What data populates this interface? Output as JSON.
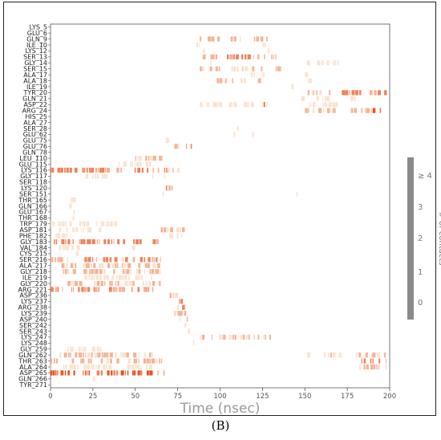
{
  "panel_label": "(B)",
  "chart_data": {
    "type": "heatmap",
    "xlabel": "Time (nsec)",
    "xlim": [
      0,
      200
    ],
    "xticks": [
      0,
      25,
      50,
      75,
      100,
      125,
      150,
      175,
      200
    ],
    "residues": [
      "LYS_5",
      "GLU_6",
      "GLN_9",
      "ILE_10",
      "LYS_12",
      "SER_13",
      "GLY_14",
      "SER_15",
      "ALA_17",
      "ALA_18",
      "ILE_19",
      "TYR_20",
      "GLN_21",
      "ASP_22",
      "ARG_24",
      "HIS_25",
      "ALA_27",
      "SER_28",
      "GLU_62",
      "GLU_75",
      "GLU_76",
      "GLN_78",
      "LEU_110",
      "GLU_115",
      "LYS_116",
      "GLY_117",
      "SER_118",
      "LYS_120",
      "SER_151",
      "THR_165",
      "GLN_166",
      "GLU_167",
      "THR_168",
      "TRP_179",
      "ASP_181",
      "PHE_182",
      "GLY_183",
      "VAL_184",
      "CYS_215",
      "SER_216",
      "ALA_217",
      "GLY_218",
      "ILE_219",
      "GLY_220",
      "ARG_221",
      "ASP_236",
      "LYS_237",
      "ARG_238",
      "LYS_239",
      "ASP_240",
      "SER_242",
      "SER_243",
      "LYS_247",
      "LYS_248",
      "GLY_259",
      "GLN_262",
      "THR_263",
      "ALA_264",
      "ASP_265",
      "GLN_266",
      "TYR_271"
    ],
    "colorbar": {
      "label": "# of contacts",
      "ticks": [
        "0",
        "1",
        "2",
        "3",
        "≥ 4"
      ],
      "color_low": "#fbe3cf",
      "color_high": "#e8531f"
    },
    "contacts": [
      {
        "residue": "LYS_5",
        "segments": [
          [
            130,
            131,
            1
          ]
        ]
      },
      {
        "residue": "GLU_6",
        "segments": [
          [
            89,
            90,
            1
          ],
          [
            131,
            132,
            1
          ]
        ]
      },
      {
        "residue": "GLN_9",
        "segments": [
          [
            88,
            100,
            2
          ],
          [
            105,
            112,
            2
          ],
          [
            118,
            128,
            2
          ]
        ]
      },
      {
        "residue": "ILE_10",
        "segments": [
          [
            86,
            88,
            1
          ],
          [
            125,
            127,
            1
          ]
        ]
      },
      {
        "residue": "LYS_12",
        "segments": [
          [
            90,
            92,
            1
          ],
          [
            128,
            130,
            1
          ]
        ]
      },
      {
        "residue": "SER_13",
        "segments": [
          [
            88,
            102,
            2
          ],
          [
            104,
            120,
            3
          ],
          [
            122,
            135,
            2
          ]
        ]
      },
      {
        "residue": "GLY_14",
        "segments": [
          [
            92,
            95,
            1
          ],
          [
            150,
            170,
            1
          ]
        ]
      },
      {
        "residue": "SER_15",
        "segments": [
          [
            88,
            100,
            2
          ],
          [
            105,
            125,
            2
          ],
          [
            127,
            136,
            2
          ]
        ]
      },
      {
        "residue": "ALA_17",
        "segments": [
          [
            118,
            122,
            1
          ],
          [
            125,
            128,
            1
          ],
          [
            148,
            152,
            1
          ]
        ]
      },
      {
        "residue": "ALA_18",
        "segments": [
          [
            98,
            108,
            2
          ],
          [
            112,
            128,
            2
          ],
          [
            152,
            156,
            1
          ]
        ]
      },
      {
        "residue": "ILE_19",
        "segments": [
          [
            95,
            97,
            1
          ],
          [
            142,
            144,
            1
          ]
        ]
      },
      {
        "residue": "TYR_20",
        "segments": [
          [
            150,
            165,
            2
          ],
          [
            168,
            200,
            3
          ]
        ]
      },
      {
        "residue": "GLN_21",
        "segments": [
          [
            148,
            150,
            1
          ],
          [
            155,
            165,
            1
          ],
          [
            175,
            180,
            1
          ]
        ]
      },
      {
        "residue": "ASP_22",
        "segments": [
          [
            88,
            110,
            1
          ],
          [
            114,
            128,
            1
          ],
          [
            122,
            127,
            4
          ],
          [
            150,
            170,
            1
          ]
        ]
      },
      {
        "residue": "ARG_24",
        "segments": [
          [
            150,
            190,
            2
          ],
          [
            190,
            196,
            4
          ]
        ]
      },
      {
        "residue": "HIS_25",
        "segments": [
          [
            105,
            106,
            1
          ]
        ]
      },
      {
        "residue": "ALA_27",
        "segments": [
          [
            102,
            103,
            1
          ]
        ]
      },
      {
        "residue": "SER_28",
        "segments": [
          [
            110,
            111,
            1
          ]
        ]
      },
      {
        "residue": "GLU_62",
        "segments": [
          [
            108,
            109,
            1
          ],
          [
            119,
            120,
            1
          ]
        ]
      },
      {
        "residue": "GLU_75",
        "segments": [
          [
            68,
            70,
            1
          ]
        ]
      },
      {
        "residue": "GLU_76",
        "segments": [
          [
            67,
            69,
            2
          ],
          [
            73,
            76,
            2
          ],
          [
            80,
            84,
            3
          ]
        ]
      },
      {
        "residue": "GLN_78",
        "segments": [
          [
            70,
            71,
            1
          ]
        ]
      },
      {
        "residue": "LEU_110",
        "segments": [
          [
            50,
            66,
            2
          ]
        ]
      },
      {
        "residue": "GLU_115",
        "segments": [
          [
            40,
            60,
            1
          ]
        ]
      },
      {
        "residue": "LYS_116",
        "segments": [
          [
            0,
            65,
            3
          ],
          [
            67,
            70,
            3
          ],
          [
            72,
            77,
            2
          ]
        ]
      },
      {
        "residue": "GLY_117",
        "segments": [
          [
            20,
            40,
            1
          ],
          [
            60,
            62,
            1
          ],
          [
            67,
            68,
            1
          ]
        ]
      },
      {
        "residue": "SER_118",
        "segments": [
          [
            66,
            68,
            1
          ]
        ]
      },
      {
        "residue": "LYS_120",
        "segments": [
          [
            68,
            72,
            3
          ]
        ]
      },
      {
        "residue": "SER_151",
        "segments": [
          [
            66,
            68,
            1
          ],
          [
            145,
            146,
            1
          ]
        ]
      },
      {
        "residue": "THR_165",
        "segments": [
          [
            12,
            15,
            1
          ]
        ]
      },
      {
        "residue": "GLN_166",
        "segments": [
          [
            10,
            13,
            1
          ]
        ]
      },
      {
        "residue": "GLU_167",
        "segments": [
          [
            12,
            16,
            1
          ]
        ]
      },
      {
        "residue": "THR_168",
        "segments": [
          [
            13,
            14,
            1
          ]
        ]
      },
      {
        "residue": "TRP_179",
        "segments": [
          [
            0,
            40,
            1
          ]
        ]
      },
      {
        "residue": "ASP_181",
        "segments": [
          [
            5,
            30,
            1
          ],
          [
            65,
            80,
            2
          ]
        ]
      },
      {
        "residue": "PHE_182",
        "segments": [
          [
            0,
            10,
            1
          ],
          [
            70,
            78,
            1
          ]
        ]
      },
      {
        "residue": "GLY_183",
        "segments": [
          [
            0,
            65,
            3
          ]
        ]
      },
      {
        "residue": "VAL_184",
        "segments": [
          [
            5,
            20,
            1
          ],
          [
            45,
            50,
            1
          ]
        ]
      },
      {
        "residue": "CYS_215",
        "segments": [
          [
            15,
            17,
            1
          ]
        ]
      },
      {
        "residue": "SER_216",
        "segments": [
          [
            0,
            10,
            2
          ],
          [
            20,
            65,
            3
          ]
        ]
      },
      {
        "residue": "ALA_217",
        "segments": [
          [
            0,
            65,
            2
          ]
        ]
      },
      {
        "residue": "GLY_218",
        "segments": [
          [
            5,
            65,
            2
          ]
        ]
      },
      {
        "residue": "ILE_219",
        "segments": [
          [
            20,
            60,
            1
          ]
        ]
      },
      {
        "residue": "GLY_220",
        "segments": [
          [
            10,
            65,
            2
          ]
        ]
      },
      {
        "residue": "ARG_221",
        "segments": [
          [
            0,
            67,
            3
          ]
        ]
      },
      {
        "residue": "ASP_236",
        "segments": [
          [
            68,
            75,
            2
          ]
        ]
      },
      {
        "residue": "LYS_237",
        "segments": [
          [
            70,
            82,
            3
          ]
        ]
      },
      {
        "residue": "ARG_238",
        "segments": [
          [
            75,
            83,
            3
          ]
        ]
      },
      {
        "residue": "LYS_239",
        "segments": [
          [
            73,
            80,
            2
          ]
        ]
      },
      {
        "residue": "ASP_240",
        "segments": [
          [
            76,
            81,
            2
          ]
        ]
      },
      {
        "residue": "SER_242",
        "segments": [
          [
            78,
            80,
            1
          ]
        ]
      },
      {
        "residue": "SER_243",
        "segments": [
          [
            80,
            83,
            2
          ]
        ]
      },
      {
        "residue": "LYS_247",
        "segments": [
          [
            88,
            100,
            2
          ],
          [
            100,
            130,
            2
          ]
        ]
      },
      {
        "residue": "LYS_248",
        "segments": [
          [
            84,
            85,
            1
          ]
        ]
      },
      {
        "residue": "GLY_259",
        "segments": [
          [
            10,
            30,
            1
          ]
        ]
      },
      {
        "residue": "GLN_262",
        "segments": [
          [
            0,
            68,
            2
          ],
          [
            150,
            165,
            1
          ],
          [
            165,
            175,
            2
          ],
          [
            180,
            198,
            2
          ]
        ]
      },
      {
        "residue": "THR_263",
        "segments": [
          [
            0,
            68,
            2
          ],
          [
            180,
            198,
            3
          ]
        ]
      },
      {
        "residue": "ALA_264",
        "segments": [
          [
            0,
            60,
            1
          ],
          [
            182,
            198,
            2
          ]
        ]
      },
      {
        "residue": "ASP_265",
        "segments": [
          [
            0,
            67,
            4
          ]
        ]
      },
      {
        "residue": "GLN_266",
        "segments": [
          [
            25,
            27,
            1
          ]
        ]
      },
      {
        "residue": "TYR_271",
        "segments": [
          [
            50,
            52,
            1
          ]
        ]
      }
    ]
  }
}
